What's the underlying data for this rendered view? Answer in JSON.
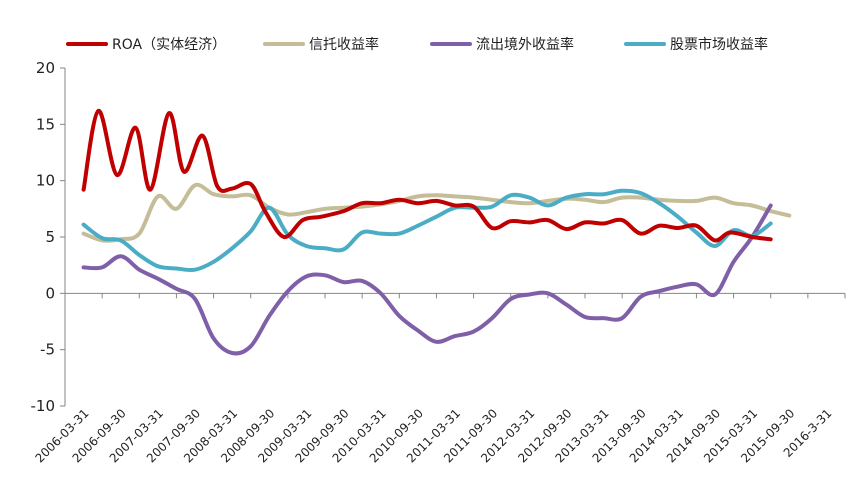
{
  "chart_data": {
    "type": "line",
    "title": "",
    "xlabel": "",
    "ylabel": "",
    "ylim": [
      -10,
      20
    ],
    "yticks": [
      -10,
      -5,
      0,
      5,
      10,
      15,
      20
    ],
    "grid": false,
    "legend_position": "top",
    "x": [
      "2006-03-31",
      "2006-09-30",
      "2007-03-31",
      "2007-09-30",
      "2008-03-31",
      "2008-09-30",
      "2009-03-31",
      "2009-09-30",
      "2010-03-31",
      "2010-09-30",
      "2011-03-31",
      "2011-09-30",
      "2012-03-31",
      "2012-09-30",
      "2013-03-31",
      "2013-09-30",
      "2014-03-31",
      "2014-09-30",
      "2015-03-31",
      "2015-09-30",
      "2016-3-31"
    ],
    "series": [
      {
        "name": "ROA（实体经济）",
        "color": "#C00000",
        "values": [
          [
            0,
            9.2
          ],
          [
            0.4,
            16.2
          ],
          [
            0.9,
            10.5
          ],
          [
            1.4,
            14.7
          ],
          [
            1.8,
            9.2
          ],
          [
            2.3,
            16.0
          ],
          [
            2.7,
            10.8
          ],
          [
            3.2,
            14.0
          ],
          [
            3.6,
            9.5
          ],
          [
            4.0,
            9.3
          ],
          [
            4.5,
            9.7
          ],
          [
            4.9,
            7.2
          ],
          [
            5.4,
            5.0
          ],
          [
            5.9,
            6.5
          ],
          [
            6.4,
            6.8
          ],
          [
            7.0,
            7.3
          ],
          [
            7.5,
            8.0
          ],
          [
            8.0,
            8.0
          ],
          [
            8.5,
            8.3
          ],
          [
            9.0,
            8.0
          ],
          [
            9.5,
            8.2
          ],
          [
            10.0,
            7.8
          ],
          [
            10.5,
            7.7
          ],
          [
            11.0,
            5.8
          ],
          [
            11.5,
            6.4
          ],
          [
            12.0,
            6.3
          ],
          [
            12.5,
            6.5
          ],
          [
            13.0,
            5.7
          ],
          [
            13.5,
            6.3
          ],
          [
            14.0,
            6.2
          ],
          [
            14.5,
            6.5
          ],
          [
            15.0,
            5.3
          ],
          [
            15.5,
            6.0
          ],
          [
            16.0,
            5.8
          ],
          [
            16.5,
            6.0
          ],
          [
            17.0,
            4.7
          ],
          [
            17.4,
            5.4
          ],
          [
            18.0,
            5.0
          ],
          [
            18.5,
            4.8
          ]
        ]
      },
      {
        "name": "信托收益率",
        "color": "#C4BD97",
        "values": [
          [
            0,
            5.3
          ],
          [
            0.5,
            4.7
          ],
          [
            1.0,
            4.8
          ],
          [
            1.5,
            5.3
          ],
          [
            2.0,
            8.6
          ],
          [
            2.5,
            7.5
          ],
          [
            3.0,
            9.6
          ],
          [
            3.5,
            8.8
          ],
          [
            4.0,
            8.6
          ],
          [
            4.5,
            8.7
          ],
          [
            5.0,
            7.6
          ],
          [
            5.5,
            7.0
          ],
          [
            6.0,
            7.2
          ],
          [
            6.5,
            7.5
          ],
          [
            7.0,
            7.6
          ],
          [
            7.5,
            7.7
          ],
          [
            8.0,
            7.9
          ],
          [
            8.5,
            8.2
          ],
          [
            9.0,
            8.6
          ],
          [
            9.5,
            8.7
          ],
          [
            10.0,
            8.6
          ],
          [
            10.5,
            8.5
          ],
          [
            11.0,
            8.3
          ],
          [
            11.5,
            8.1
          ],
          [
            12.0,
            8.0
          ],
          [
            12.5,
            8.2
          ],
          [
            13.0,
            8.4
          ],
          [
            13.5,
            8.3
          ],
          [
            14.0,
            8.1
          ],
          [
            14.5,
            8.5
          ],
          [
            15.0,
            8.5
          ],
          [
            15.5,
            8.3
          ],
          [
            16.0,
            8.2
          ],
          [
            16.5,
            8.2
          ],
          [
            17.0,
            8.5
          ],
          [
            17.5,
            8.0
          ],
          [
            18.0,
            7.8
          ],
          [
            18.5,
            7.3
          ],
          [
            19.0,
            6.9
          ]
        ]
      },
      {
        "name": "流出境外收益率",
        "color": "#7F5FA8",
        "values": [
          [
            0,
            2.3
          ],
          [
            0.5,
            2.3
          ],
          [
            1.0,
            3.3
          ],
          [
            1.5,
            2.1
          ],
          [
            2.0,
            1.3
          ],
          [
            2.5,
            0.4
          ],
          [
            3.0,
            -0.5
          ],
          [
            3.5,
            -4.0
          ],
          [
            4.0,
            -5.3
          ],
          [
            4.5,
            -4.7
          ],
          [
            5.0,
            -2.0
          ],
          [
            5.5,
            0.2
          ],
          [
            6.0,
            1.5
          ],
          [
            6.5,
            1.6
          ],
          [
            7.0,
            1.0
          ],
          [
            7.5,
            1.1
          ],
          [
            8.0,
            0.0
          ],
          [
            8.5,
            -2.0
          ],
          [
            9.0,
            -3.3
          ],
          [
            9.5,
            -4.3
          ],
          [
            10.0,
            -3.8
          ],
          [
            10.5,
            -3.4
          ],
          [
            11.0,
            -2.2
          ],
          [
            11.5,
            -0.5
          ],
          [
            12.0,
            -0.1
          ],
          [
            12.5,
            0.0
          ],
          [
            13.0,
            -1.0
          ],
          [
            13.5,
            -2.1
          ],
          [
            14.0,
            -2.2
          ],
          [
            14.5,
            -2.2
          ],
          [
            15.0,
            -0.3
          ],
          [
            15.5,
            0.2
          ],
          [
            16.0,
            0.6
          ],
          [
            16.5,
            0.8
          ],
          [
            17.0,
            -0.1
          ],
          [
            17.5,
            2.8
          ],
          [
            18.0,
            5.0
          ],
          [
            18.5,
            7.8
          ]
        ]
      },
      {
        "name": "股票市场收益率",
        "color": "#4BACC6",
        "values": [
          [
            0,
            6.1
          ],
          [
            0.5,
            4.9
          ],
          [
            1.0,
            4.7
          ],
          [
            1.5,
            3.4
          ],
          [
            2.0,
            2.4
          ],
          [
            2.5,
            2.2
          ],
          [
            3.0,
            2.1
          ],
          [
            3.5,
            2.8
          ],
          [
            4.0,
            4.0
          ],
          [
            4.5,
            5.5
          ],
          [
            5.0,
            7.6
          ],
          [
            5.5,
            5.2
          ],
          [
            6.0,
            4.2
          ],
          [
            6.5,
            4.0
          ],
          [
            7.0,
            3.9
          ],
          [
            7.5,
            5.4
          ],
          [
            8.0,
            5.3
          ],
          [
            8.5,
            5.3
          ],
          [
            9.0,
            6.0
          ],
          [
            9.5,
            6.8
          ],
          [
            10.0,
            7.6
          ],
          [
            10.5,
            7.6
          ],
          [
            11.0,
            7.7
          ],
          [
            11.5,
            8.7
          ],
          [
            12.0,
            8.5
          ],
          [
            12.5,
            7.8
          ],
          [
            13.0,
            8.5
          ],
          [
            13.5,
            8.8
          ],
          [
            14.0,
            8.8
          ],
          [
            14.5,
            9.1
          ],
          [
            15.0,
            8.9
          ],
          [
            15.5,
            8.0
          ],
          [
            16.0,
            6.8
          ],
          [
            16.5,
            5.4
          ],
          [
            17.0,
            4.2
          ],
          [
            17.5,
            5.6
          ],
          [
            18.0,
            5.1
          ],
          [
            18.5,
            6.2
          ]
        ]
      }
    ]
  }
}
